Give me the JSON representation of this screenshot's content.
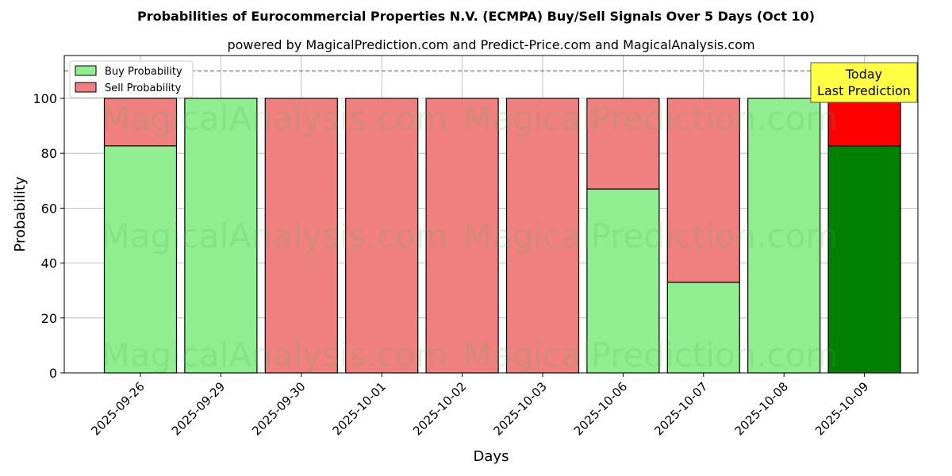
{
  "chart_data": {
    "type": "bar",
    "stacked": true,
    "title": "Probabilities of Eurocommercial Properties N.V. (ECMPA) Buy/Sell Signals Over 5 Days (Oct 10)",
    "subtitle": "powered by MagicalPrediction.com and Predict-Price.com and MagicalAnalysis.com",
    "xlabel": "Days",
    "ylabel": "Probability",
    "ylim": [
      0,
      115.6
    ],
    "yticks": [
      0,
      20,
      40,
      60,
      80,
      100
    ],
    "grid": true,
    "legend_position": "top-left",
    "categories": [
      "2025-09-26",
      "2025-09-29",
      "2025-09-30",
      "2025-10-01",
      "2025-10-02",
      "2025-10-03",
      "2025-10-06",
      "2025-10-07",
      "2025-10-08",
      "2025-10-09"
    ],
    "series": [
      {
        "name": "Buy Probability",
        "color": "#90ee90",
        "values": [
          82.7,
          100,
          0,
          0,
          0,
          0,
          67,
          33,
          100,
          82.7
        ]
      },
      {
        "name": "Sell Probability",
        "color": "#f08080",
        "values": [
          17.3,
          0,
          100,
          100,
          100,
          100,
          33,
          67,
          0,
          17.3
        ]
      }
    ],
    "highlight": {
      "index": 9,
      "buy_color": "#008000",
      "sell_color": "#ff0000"
    },
    "threshold_line": 110,
    "annotation": {
      "line1": "Today",
      "line2": "Last Prediction"
    },
    "watermarks": [
      "MagicalAnalysis.com",
      "MagicalPrediction.com"
    ]
  }
}
